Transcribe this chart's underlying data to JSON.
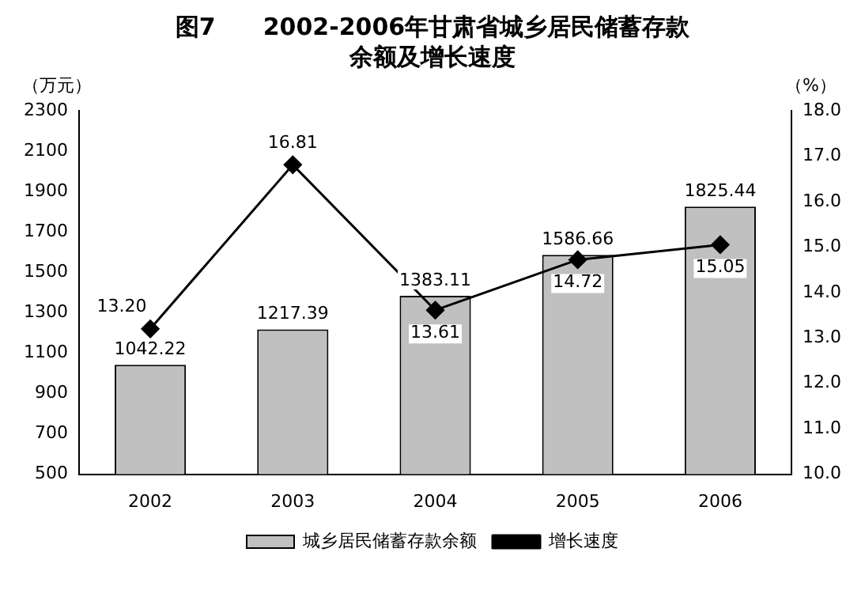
{
  "chart_data": {
    "type": "bar",
    "title": "图7　　2002-2006年甘肃省城乡居民储蓄存款余额及增长速度",
    "ylabel": "（万元）",
    "y2label": "（%）",
    "categories": [
      "2002",
      "2003",
      "2004",
      "2005",
      "2006"
    ],
    "series": [
      {
        "name": "城乡居民储蓄存款余额",
        "color": "#c0c0c0",
        "values": [
          1042.22,
          1217.39,
          1383.11,
          1586.66,
          1825.44
        ],
        "value_labels": [
          "1042.22",
          "1217.39",
          "1383.11",
          "1586.66",
          "1825.44"
        ]
      },
      {
        "name": "增长速度",
        "type": "line",
        "axis": "y2",
        "color": "#000000",
        "values": [
          13.2,
          16.81,
          13.61,
          14.72,
          15.05
        ],
        "value_labels": [
          "13.20",
          "16.81",
          "13.61",
          "14.72",
          "15.05"
        ]
      }
    ],
    "ylim": [
      500,
      2300
    ],
    "yticks": [
      500,
      700,
      900,
      1100,
      1300,
      1500,
      1700,
      1900,
      2100,
      2300
    ],
    "y2lim": [
      10,
      18
    ],
    "y2ticks": [
      {
        "value": 10,
        "label": "10.0"
      },
      {
        "value": 11,
        "label": "11.0"
      },
      {
        "value": 12,
        "label": "12.0"
      },
      {
        "value": 13,
        "label": "13.0"
      },
      {
        "value": 14,
        "label": "14.0"
      },
      {
        "value": 15,
        "label": "15.0"
      },
      {
        "value": 16,
        "label": "16.0"
      },
      {
        "value": 17,
        "label": "17.0"
      },
      {
        "value": 18,
        "label": "18.0"
      }
    ],
    "legend": "bottom",
    "grid": false,
    "marker": "diamond",
    "line_style": "solid"
  }
}
